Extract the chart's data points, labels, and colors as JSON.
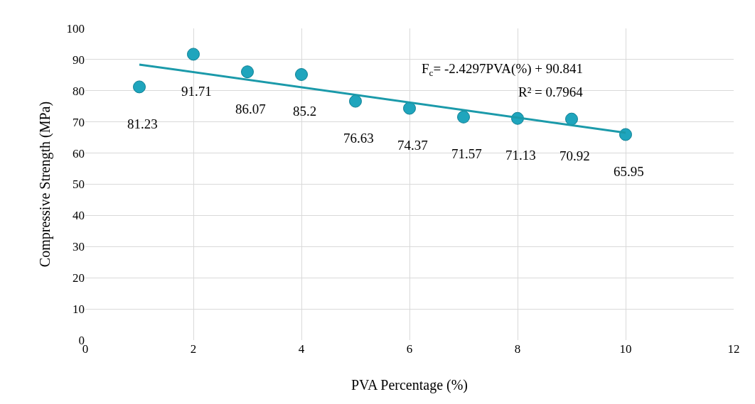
{
  "chart_data": {
    "type": "scatter",
    "xlabel": "PVA Percentage (%)",
    "ylabel": "Compressive Strength (MPa)",
    "x": [
      1,
      2,
      3,
      4,
      5,
      6,
      7,
      8,
      9,
      10
    ],
    "series": [
      {
        "color": "#1fa5bd",
        "values": [
          81.23,
          91.71,
          86.07,
          85.2,
          76.63,
          74.37,
          71.57,
          71.13,
          70.92,
          65.95
        ],
        "value_labels": [
          "81.23",
          "91.71",
          "86.07",
          "85.2",
          "76.63",
          "74.37",
          "71.57",
          "71.13",
          "70.92",
          "65.95"
        ]
      },
      {
        "type": "line",
        "color": "#1b9aaa",
        "x": [
          1,
          10
        ],
        "values": [
          88.4,
          66.5
        ],
        "marker": "none"
      }
    ],
    "annotations": [
      "F$_{c}$= -2.4297PVA(%) + 90.841",
      "R² = 0.7964"
    ],
    "xlim": [
      0,
      12
    ],
    "xticks": [
      0,
      2,
      4,
      6,
      8,
      10,
      12
    ],
    "ylim": [
      0,
      100
    ],
    "yticks": [
      0,
      10,
      20,
      30,
      40,
      50,
      60,
      70,
      80,
      90,
      100
    ],
    "grid": true,
    "marker": "circle"
  }
}
